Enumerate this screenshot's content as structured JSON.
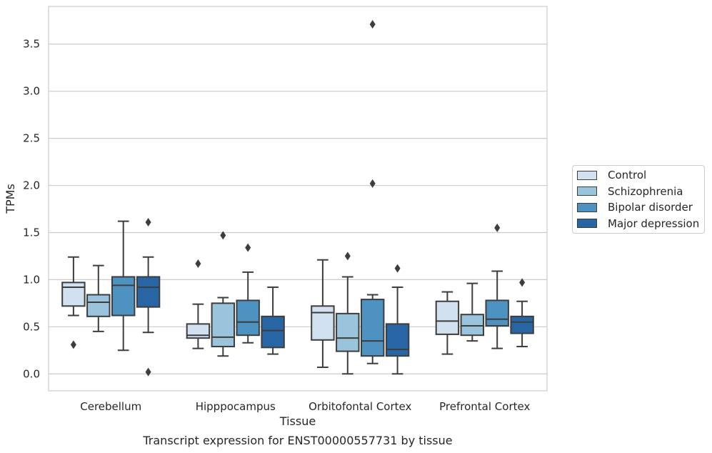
{
  "chart_data": {
    "type": "boxplot",
    "title": "",
    "caption": "Transcript expression for ENST00000557731 by tissue",
    "xlabel": "Tissue",
    "ylabel": "TPMs",
    "ylim": [
      -0.18,
      3.9
    ],
    "yticks": [
      "0.0",
      "0.5",
      "1.0",
      "1.5",
      "2.0",
      "2.5",
      "3.0",
      "3.5"
    ],
    "grid": "horizontal",
    "legend_position": "right",
    "categories": [
      "Cerebellum",
      "Hipppocampus",
      "Orbitofontal Cortex",
      "Prefrontal Cortex"
    ],
    "series": [
      {
        "name": "Control",
        "color": "#d1e1f0",
        "boxes": [
          {
            "whislo": 0.62,
            "q1": 0.72,
            "med": 0.92,
            "q3": 0.97,
            "whishi": 1.24,
            "fliers": [
              0.31
            ]
          },
          {
            "whislo": 0.27,
            "q1": 0.38,
            "med": 0.41,
            "q3": 0.53,
            "whishi": 0.74,
            "fliers": [
              1.17
            ]
          },
          {
            "whislo": 0.07,
            "q1": 0.36,
            "med": 0.65,
            "q3": 0.72,
            "whishi": 1.21,
            "fliers": []
          },
          {
            "whislo": 0.21,
            "q1": 0.42,
            "med": 0.56,
            "q3": 0.77,
            "whishi": 0.87,
            "fliers": []
          }
        ]
      },
      {
        "name": "Schizophrenia",
        "color": "#9ac4dc",
        "boxes": [
          {
            "whislo": 0.45,
            "q1": 0.61,
            "med": 0.76,
            "q3": 0.84,
            "whishi": 1.15,
            "fliers": []
          },
          {
            "whislo": 0.19,
            "q1": 0.29,
            "med": 0.39,
            "q3": 0.75,
            "whishi": 0.81,
            "fliers": [
              1.47
            ]
          },
          {
            "whislo": 0.0,
            "q1": 0.24,
            "med": 0.38,
            "q3": 0.64,
            "whishi": 1.03,
            "fliers": [
              1.25
            ]
          },
          {
            "whislo": 0.35,
            "q1": 0.41,
            "med": 0.51,
            "q3": 0.63,
            "whishi": 0.96,
            "fliers": []
          }
        ]
      },
      {
        "name": "Bipolar disorder",
        "color": "#4d92c1",
        "boxes": [
          {
            "whislo": 0.25,
            "q1": 0.62,
            "med": 0.94,
            "q3": 1.03,
            "whishi": 1.62,
            "fliers": []
          },
          {
            "whislo": 0.33,
            "q1": 0.41,
            "med": 0.55,
            "q3": 0.78,
            "whishi": 1.08,
            "fliers": [
              1.34
            ]
          },
          {
            "whislo": 0.11,
            "q1": 0.19,
            "med": 0.35,
            "q3": 0.79,
            "whishi": 0.84,
            "fliers": [
              2.02,
              3.71
            ]
          },
          {
            "whislo": 0.27,
            "q1": 0.51,
            "med": 0.58,
            "q3": 0.78,
            "whishi": 1.09,
            "fliers": [
              1.55
            ]
          }
        ]
      },
      {
        "name": "Major depression",
        "color": "#2865a4",
        "boxes": [
          {
            "whislo": 0.44,
            "q1": 0.71,
            "med": 0.92,
            "q3": 1.03,
            "whishi": 1.24,
            "fliers": [
              1.61,
              0.02
            ]
          },
          {
            "whislo": 0.21,
            "q1": 0.28,
            "med": 0.46,
            "q3": 0.61,
            "whishi": 0.92,
            "fliers": []
          },
          {
            "whislo": 0.0,
            "q1": 0.19,
            "med": 0.26,
            "q3": 0.53,
            "whishi": 0.92,
            "fliers": [
              1.12
            ]
          },
          {
            "whislo": 0.29,
            "q1": 0.43,
            "med": 0.55,
            "q3": 0.61,
            "whishi": 0.77,
            "fliers": [
              0.97
            ]
          }
        ]
      }
    ]
  }
}
